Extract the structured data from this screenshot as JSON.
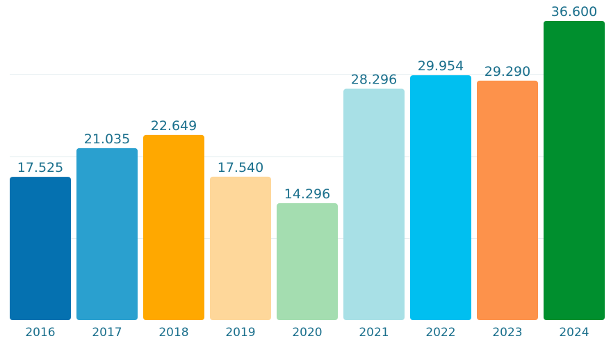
{
  "chart_data": {
    "type": "bar",
    "title": "",
    "xlabel": "",
    "ylabel": "",
    "categories": [
      "2016",
      "2017",
      "2018",
      "2019",
      "2020",
      "2021",
      "2022",
      "2023",
      "2024"
    ],
    "values": [
      17525,
      21035,
      22649,
      17540,
      14296,
      28296,
      29954,
      29290,
      36600
    ],
    "value_labels": [
      "17.525",
      "21.035",
      "22.649",
      "17.540",
      "14.296",
      "28.296",
      "29.954",
      "29.290",
      "36.600"
    ],
    "colors": [
      "#0571b0",
      "#2aa0cf",
      "#ffa800",
      "#fed79a",
      "#a4ddb0",
      "#a8e0e6",
      "#00bff0",
      "#fd924b",
      "#008f2e"
    ],
    "ylim": [
      0,
      40000
    ],
    "grid": true,
    "gridlines": [
      10000,
      20000,
      30000
    ],
    "legend": "none"
  }
}
